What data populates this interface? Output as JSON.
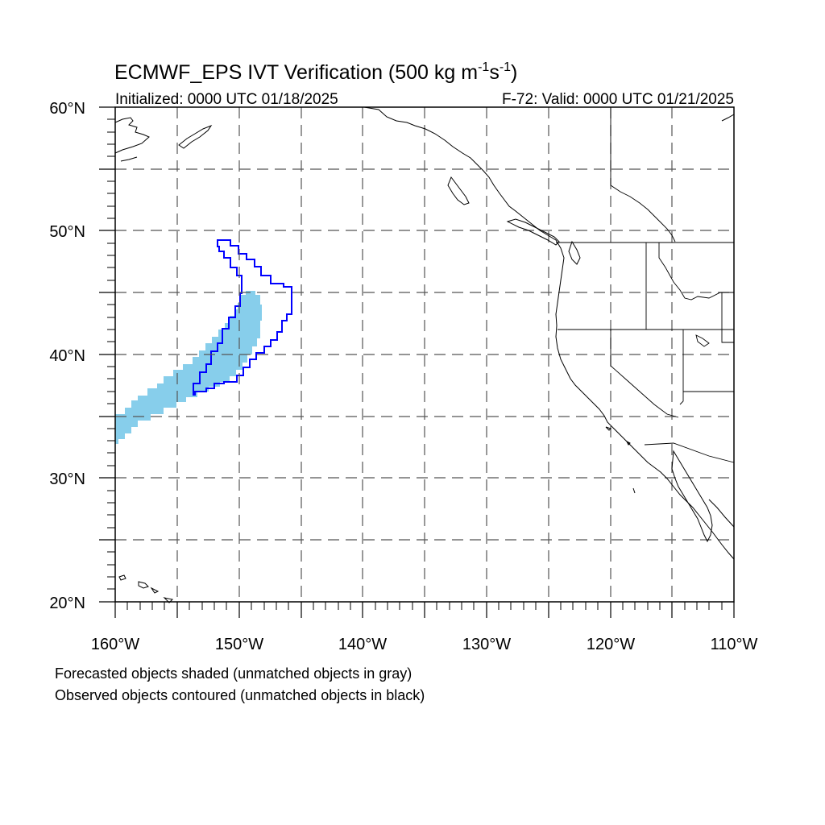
{
  "title": {
    "main": "ECMWF_EPS IVT Verification (500 kg m",
    "sup1": "-1",
    "mid": "s",
    "sup2": "-1",
    "end": ")"
  },
  "subtitle_left": "Initialized: 0000 UTC 01/18/2025",
  "subtitle_right": "F-72: Valid: 0000 UTC 01/21/2025",
  "lat_labels": [
    "60°N",
    "50°N",
    "40°N",
    "30°N",
    "20°N"
  ],
  "lon_labels": [
    "160°W",
    "150°W",
    "140°W",
    "130°W",
    "120°W",
    "110°W"
  ],
  "legend": {
    "line1": "Forecasted objects shaded (unmatched objects in gray)",
    "line2": "Observed objects contoured (unmatched objects in black)"
  },
  "map": {
    "extent": {
      "lon_min": -160,
      "lon_max": -110,
      "lat_min": 20,
      "lat_max": 60
    },
    "grid": "dashed",
    "colors": {
      "forecast_fill": "#87ceeb",
      "observed_contour": "#0000ff",
      "coastline": "#000000",
      "grid": "#555555"
    }
  }
}
